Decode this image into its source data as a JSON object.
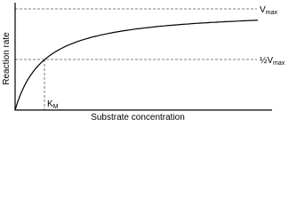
{
  "labels": {
    "vmax": {
      "text": "V",
      "subscript": "max"
    },
    "half_vmax": {
      "text": "½V",
      "subscript": "max"
    },
    "km": {
      "text": "K",
      "subscript": "M"
    }
  },
  "axes": {
    "y_title": "Reaction rate",
    "x_title": "Substrate concentration"
  }
}
